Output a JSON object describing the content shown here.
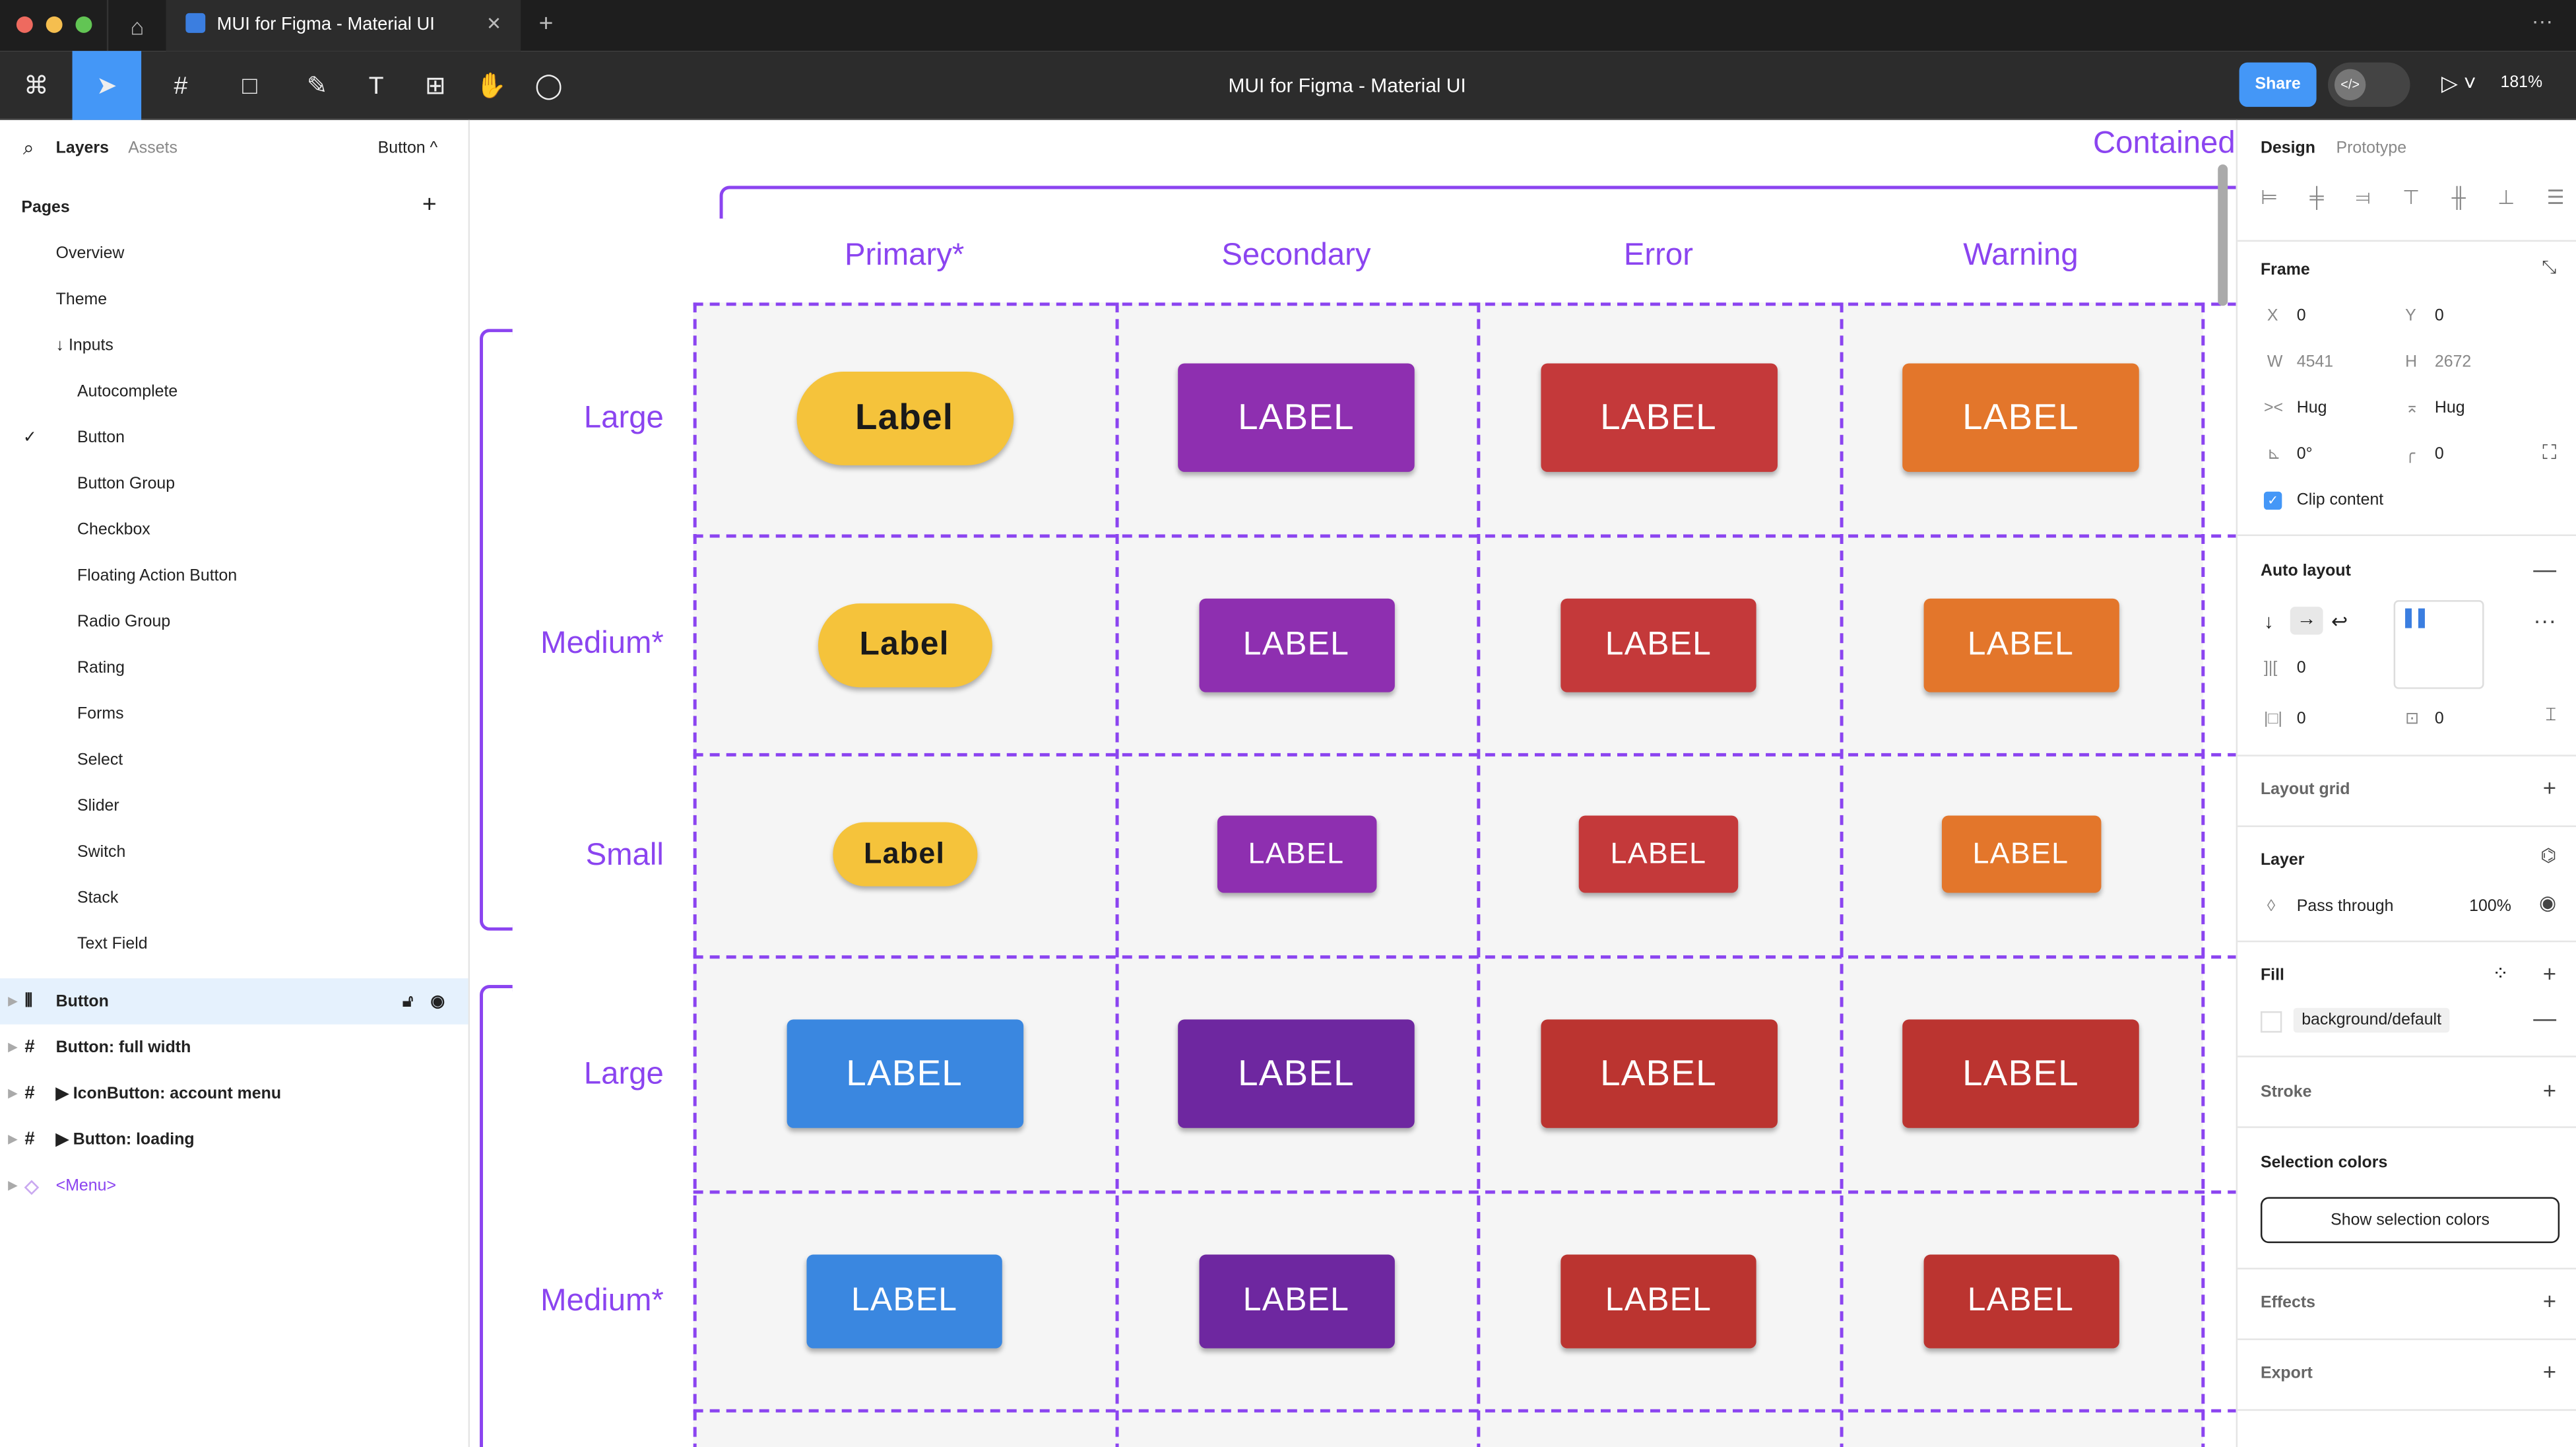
{
  "window": {
    "tab_title": "MUI for Figma - Material UI",
    "title": "MUI for Figma - Material UI",
    "share": "Share",
    "zoom": "181%",
    "traffic_colors": [
      "#ee6a5f",
      "#f5be4f",
      "#62c554"
    ],
    "accent": "#4497f7"
  },
  "left": {
    "tabs": {
      "layers": "Layers",
      "assets": "Assets"
    },
    "page_selector": "Button ^",
    "pages_title": "Pages",
    "pages": [
      "Overview",
      "Theme",
      "↓ Inputs",
      "Autocomplete",
      "Button",
      "Button Group",
      "Checkbox",
      "Floating Action Button",
      "Radio Group",
      "Rating",
      "Forms",
      "Select",
      "Slider",
      "Switch",
      "Stack",
      "Text Field"
    ],
    "current_page": "Button",
    "layers": [
      {
        "name": "Button",
        "icon": "auto-layout-icon",
        "selected": true
      },
      {
        "name": "Button: full width",
        "icon": "frame-icon"
      },
      {
        "name": "▶ IconButton: account menu",
        "icon": "frame-icon"
      },
      {
        "name": "▶ Button: loading",
        "icon": "frame-icon"
      },
      {
        "name": "<Menu>",
        "icon": "component-instance-icon"
      }
    ]
  },
  "canvas": {
    "title": "Contained",
    "columns": [
      "Primary*",
      "Secondary",
      "Error",
      "Warning"
    ],
    "rows": [
      {
        "label": "Large",
        "buttons": [
          {
            "text": "Label",
            "color": "#f5c33b"
          },
          {
            "text": "LABEL",
            "color": "#8e2fb0"
          },
          {
            "text": "LABEL",
            "color": "#c4393a"
          },
          {
            "text": "LABEL",
            "color": "#e3762b"
          }
        ]
      },
      {
        "label": "Medium*",
        "buttons": [
          {
            "text": "Label",
            "color": "#f5c33b"
          },
          {
            "text": "LABEL",
            "color": "#8e2fb0"
          },
          {
            "text": "LABEL",
            "color": "#c4393a"
          },
          {
            "text": "LABEL",
            "color": "#e3762b"
          }
        ]
      },
      {
        "label": "Small",
        "buttons": [
          {
            "text": "Label",
            "color": "#f5c33b"
          },
          {
            "text": "LABEL",
            "color": "#8e2fb0"
          },
          {
            "text": "LABEL",
            "color": "#c4393a"
          },
          {
            "text": "LABEL",
            "color": "#e3762b"
          }
        ]
      },
      {
        "label": "Large",
        "buttons": [
          {
            "text": "LABEL",
            "color": "#3a87e0"
          },
          {
            "text": "LABEL",
            "color": "#6e27a0"
          },
          {
            "text": "LABEL",
            "color": "#bb3430"
          },
          {
            "text": "LABEL",
            "color": "#bb3430"
          }
        ]
      },
      {
        "label": "Medium*",
        "buttons": [
          {
            "text": "LABEL",
            "color": "#3a87e0"
          },
          {
            "text": "LABEL",
            "color": "#6e27a0"
          },
          {
            "text": "LABEL",
            "color": "#bb3430"
          },
          {
            "text": "LABEL",
            "color": "#bb3430"
          }
        ]
      }
    ]
  },
  "right": {
    "tabs": {
      "design": "Design",
      "prototype": "Prototype"
    },
    "frame": {
      "title": "Frame",
      "x_label": "X",
      "x": "0",
      "y_label": "Y",
      "y": "0",
      "w_label": "W",
      "w": "4541",
      "h_label": "H",
      "h": "2672",
      "width_mode": "Hug",
      "height_mode": "Hug",
      "rotation": "0°",
      "radius": "0",
      "clip_content": "Clip content"
    },
    "auto_layout": {
      "title": "Auto layout",
      "gap": "0",
      "padding_h": "0",
      "padding_v": "0"
    },
    "layout_grid": "Layout grid",
    "layer": {
      "title": "Layer",
      "blend": "Pass through",
      "opacity": "100%"
    },
    "fill": {
      "title": "Fill",
      "style": "background/default"
    },
    "stroke": "Stroke",
    "selection_colors": {
      "title": "Selection colors",
      "button": "Show selection colors"
    },
    "effects": "Effects",
    "export": "Export"
  }
}
